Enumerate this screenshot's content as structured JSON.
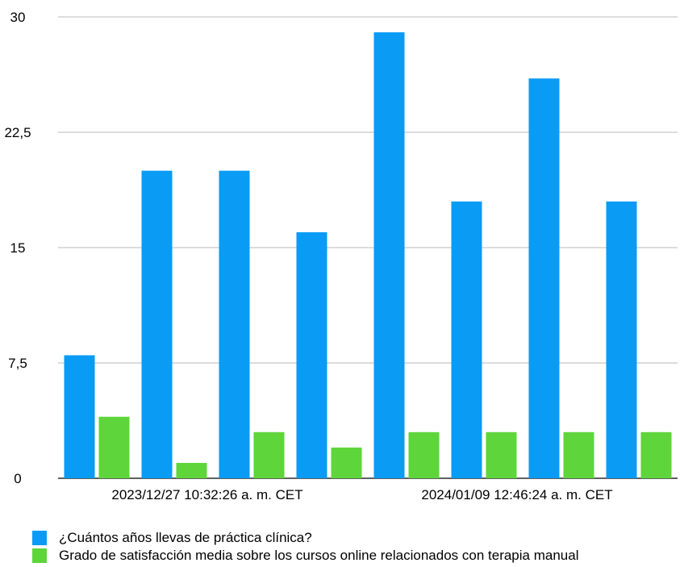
{
  "chart_data": {
    "type": "bar",
    "categories": [
      "",
      "2023/12/27 10:32:26 a. m. CET",
      "",
      "",
      "",
      "2024/01/09 12:46:24 a. m. CET",
      "",
      ""
    ],
    "series": [
      {
        "name": "¿Cuántos años llevas de práctica clínica?",
        "color": "#0a9bf5",
        "values": [
          8,
          20,
          20,
          16,
          29,
          18,
          26,
          18
        ]
      },
      {
        "name": "Grado de satisfacción media sobre los cursos online relacionados con terapia manual",
        "color": "#5ed53a",
        "values": [
          4,
          1,
          3,
          2,
          3,
          3,
          3,
          3
        ]
      }
    ],
    "y_ticks": [
      "0",
      "7,5",
      "15",
      "22,5",
      "30"
    ],
    "y_tick_values": [
      0,
      7.5,
      15,
      22.5,
      30
    ],
    "ylim": [
      0,
      30
    ],
    "x_tick_labels": [
      "2023/12/27 10:32:26 a. m. CET",
      "2024/01/09 12:46:24 a. m. CET"
    ],
    "title": "",
    "xlabel": "",
    "ylabel": "",
    "grid": true,
    "legend_position": "bottom-left"
  }
}
